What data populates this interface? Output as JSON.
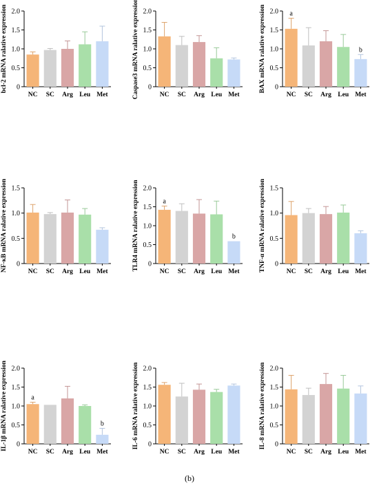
{
  "caption": "(b)",
  "colors": {
    "NC": "#F5B578",
    "SC": "#D3D3D3",
    "Arg": "#D9A6A6",
    "Leu": "#A9DFA9",
    "Met": "#C6DAF7"
  },
  "chart_data": [
    {
      "type": "bar",
      "ylabel": "bcl-2 mRNA ralative expression",
      "categories": [
        "NC",
        "SC",
        "Arg",
        "Leu",
        "Met"
      ],
      "values": [
        0.85,
        0.97,
        1.0,
        1.12,
        1.2
      ],
      "errors": [
        0.07,
        0.04,
        0.21,
        0.33,
        0.4
      ],
      "letters": [
        "",
        "",
        "",
        "",
        ""
      ],
      "ylim": [
        0,
        2.0
      ],
      "yticks": [
        "0",
        "0.5",
        "1.0",
        "1.5",
        "2.0"
      ]
    },
    {
      "type": "bar",
      "ylabel": "Caspase3 mRNA ralative expression",
      "categories": [
        "NC",
        "SC",
        "Arg",
        "Leu",
        "Met"
      ],
      "values": [
        1.33,
        1.1,
        1.18,
        0.75,
        0.72
      ],
      "errors": [
        0.37,
        0.23,
        0.17,
        0.28,
        0.04
      ],
      "letters": [
        "",
        "",
        "",
        "",
        ""
      ],
      "ylim": [
        0,
        2.0
      ],
      "yticks": [
        "0",
        "0.5",
        "1.0",
        "1.5",
        "2.0"
      ]
    },
    {
      "type": "bar",
      "ylabel": "BAX mRNA ralative expression",
      "categories": [
        "NC",
        "SC",
        "Arg",
        "Leu",
        "Met"
      ],
      "values": [
        1.53,
        1.09,
        1.2,
        1.05,
        0.73
      ],
      "errors": [
        0.28,
        0.47,
        0.28,
        0.33,
        0.12
      ],
      "letters": [
        "a",
        "",
        "",
        "",
        "b"
      ],
      "ylim": [
        0,
        2.0
      ],
      "yticks": [
        "0",
        "0.5",
        "1.0",
        "1.5",
        "2.0"
      ]
    },
    {
      "type": "bar",
      "ylabel": "NF-κB mRNA ralative expression",
      "categories": [
        "NC",
        "SC",
        "Arg",
        "Leu",
        "Met"
      ],
      "values": [
        1.01,
        0.98,
        1.01,
        0.97,
        0.67
      ],
      "errors": [
        0.16,
        0.03,
        0.25,
        0.12,
        0.04
      ],
      "letters": [
        "",
        "",
        "",
        "",
        ""
      ],
      "ylim": [
        0,
        1.5
      ],
      "yticks": [
        "0",
        "0.5",
        "1.0",
        "1.5"
      ]
    },
    {
      "type": "bar",
      "ylabel": "TLR4 mRNA ralative expression",
      "categories": [
        "NC",
        "SC",
        "Arg",
        "Leu",
        "Met"
      ],
      "values": [
        1.42,
        1.39,
        1.32,
        1.3,
        0.59
      ],
      "errors": [
        0.1,
        0.19,
        0.37,
        0.35,
        0.0
      ],
      "letters": [
        "a",
        "",
        "",
        "",
        "b"
      ],
      "ylim": [
        0,
        2.0
      ],
      "yticks": [
        "0",
        "0.5",
        "1.0",
        "1.5",
        "2.0"
      ]
    },
    {
      "type": "bar",
      "ylabel": "TNF-α mRNA ralative expression",
      "categories": [
        "NC",
        "SC",
        "Arg",
        "Leu",
        "Met"
      ],
      "values": [
        0.96,
        1.0,
        0.98,
        1.01,
        0.6
      ],
      "errors": [
        0.27,
        0.09,
        0.15,
        0.15,
        0.05
      ],
      "letters": [
        "",
        "",
        "",
        "",
        ""
      ],
      "ylim": [
        0,
        1.5
      ],
      "yticks": [
        "0",
        "0.5",
        "1.0",
        "1.5"
      ]
    },
    {
      "type": "bar",
      "ylabel": "IL-1β mRNA ralative expression",
      "categories": [
        "NC",
        "SC",
        "Arg",
        "Leu",
        "Met"
      ],
      "values": [
        1.05,
        1.03,
        1.2,
        1.0,
        0.24
      ],
      "errors": [
        0.05,
        0.0,
        0.32,
        0.03,
        0.17
      ],
      "letters": [
        "a",
        "",
        "",
        "",
        "b"
      ],
      "ylim": [
        0,
        2.0
      ],
      "yticks": [
        "0",
        "0.5",
        "1.0",
        "1.5",
        "2.0"
      ]
    },
    {
      "type": "bar",
      "ylabel": "IL-6 mRNA ralative expression",
      "categories": [
        "NC",
        "SC",
        "Arg",
        "Leu",
        "Met"
      ],
      "values": [
        1.56,
        1.25,
        1.43,
        1.37,
        1.54
      ],
      "errors": [
        0.06,
        0.35,
        0.15,
        0.07,
        0.04
      ],
      "letters": [
        "",
        "",
        "",
        "",
        ""
      ],
      "ylim": [
        0,
        2.0
      ],
      "yticks": [
        "0",
        "0.5",
        "1.0",
        "1.5",
        "2.0"
      ]
    },
    {
      "type": "bar",
      "ylabel": "IL-8 mRNA ralative expression",
      "categories": [
        "NC",
        "SC",
        "Arg",
        "Leu",
        "Met"
      ],
      "values": [
        1.44,
        1.29,
        1.58,
        1.46,
        1.33
      ],
      "errors": [
        0.37,
        0.18,
        0.28,
        0.35,
        0.2
      ],
      "letters": [
        "",
        "",
        "",
        "",
        ""
      ],
      "ylim": [
        0,
        2.0
      ],
      "yticks": [
        "0",
        "0.5",
        "1.0",
        "1.5",
        "2.0"
      ]
    }
  ]
}
